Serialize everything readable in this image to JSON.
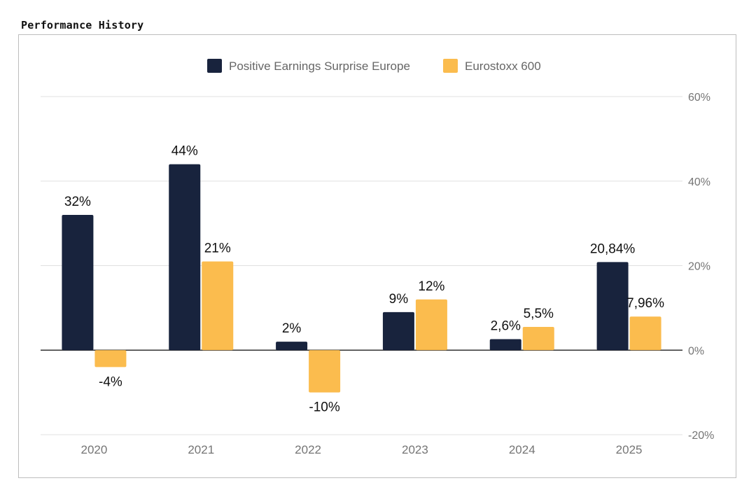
{
  "page_title": "Performance History",
  "colors": {
    "series_1": "#18233d",
    "series_2": "#fbbc4e",
    "grid": "#e0e0e0",
    "zero_line": "#333333"
  },
  "chart_data": {
    "type": "bar",
    "title": "",
    "xlabel": "",
    "ylabel": "",
    "categories": [
      "2020",
      "2021",
      "2022",
      "2023",
      "2024",
      "2025"
    ],
    "series": [
      {
        "name": "Positive Earnings Surprise Europe",
        "values": [
          32,
          44,
          2,
          9,
          2.6,
          20.84
        ],
        "labels": [
          "32%",
          "44%",
          "2%",
          "9%",
          "2,6%",
          "20,84%"
        ]
      },
      {
        "name": "Eurostoxx 600",
        "values": [
          -4,
          21,
          -10,
          12,
          5.5,
          7.96
        ],
        "labels": [
          "-4%",
          "21%",
          "-10%",
          "12%",
          "5,5%",
          "7,96%"
        ]
      }
    ],
    "ylim": [
      -20,
      60
    ],
    "yticks": [
      60,
      40,
      20,
      0,
      -20
    ],
    "ytick_labels": [
      "60%",
      "40%",
      "20%",
      "0%",
      "-20%"
    ],
    "y_axis_side": "right",
    "grid": true,
    "legend_position": "top-center"
  }
}
